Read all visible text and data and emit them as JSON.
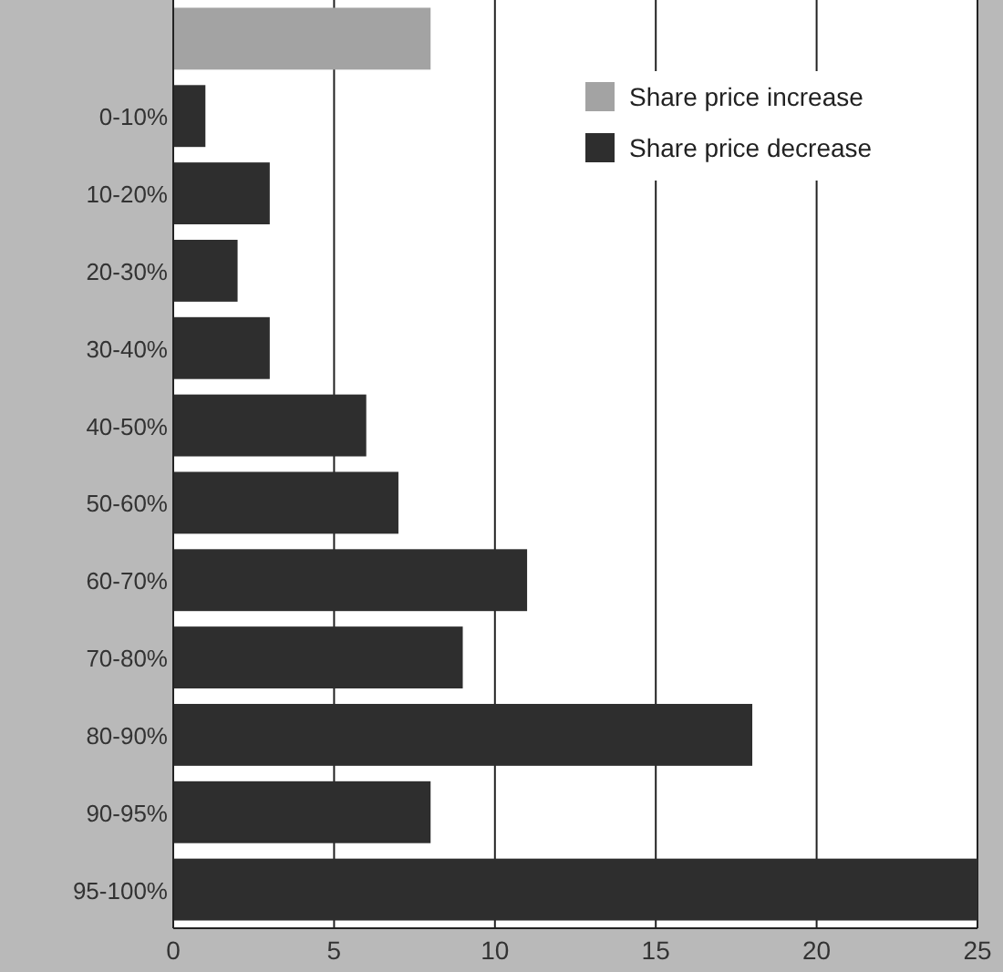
{
  "chart_data": {
    "type": "bar",
    "orientation": "horizontal",
    "categories": [
      null,
      "0-10%",
      "10-20%",
      "20-30%",
      "30-40%",
      "40-50%",
      "50-60%",
      "60-70%",
      "70-80%",
      "80-90%",
      "90-95%",
      "95-100%"
    ],
    "series": [
      {
        "name": "Share price increase",
        "color": "#a3a3a3",
        "values": [
          8,
          null,
          null,
          null,
          null,
          null,
          null,
          null,
          null,
          null,
          null,
          null
        ]
      },
      {
        "name": "Share price decrease",
        "color": "#2e2e2e",
        "values": [
          null,
          1,
          3,
          2,
          3,
          6,
          7,
          11,
          9,
          18,
          8,
          25
        ]
      }
    ],
    "xlim": [
      0,
      25
    ],
    "xticks": [
      0,
      5,
      10,
      15,
      20,
      25
    ],
    "grid": "x",
    "legend": "top right"
  }
}
